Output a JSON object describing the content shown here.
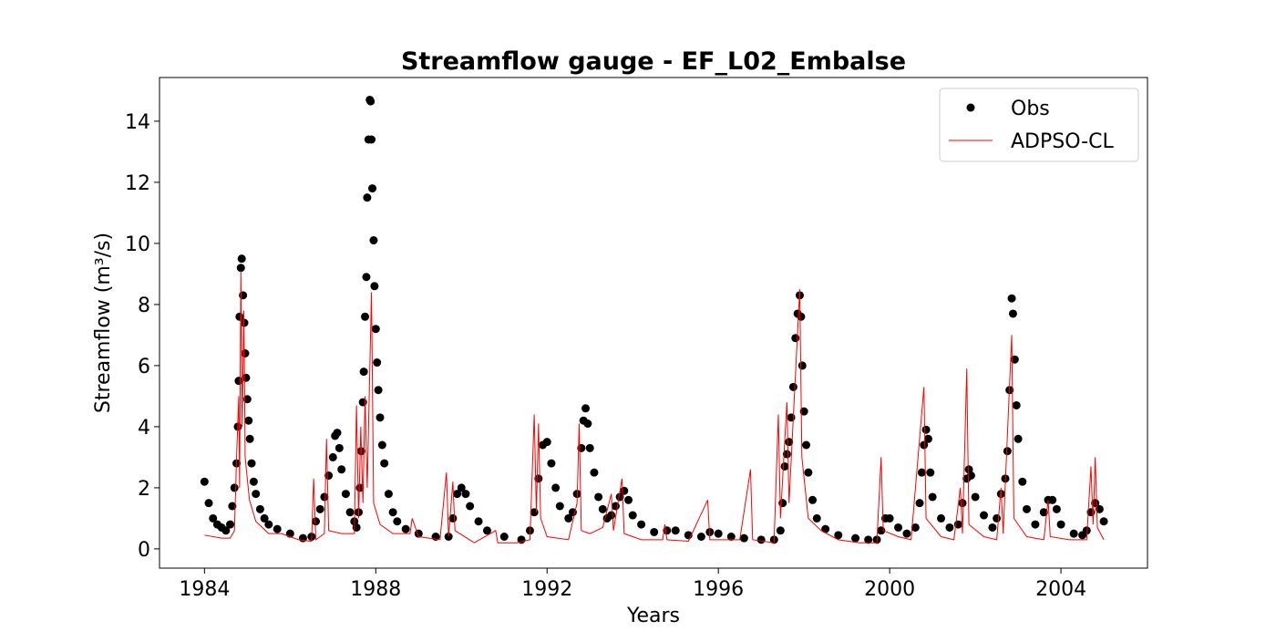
{
  "chart_data": {
    "type": "scatter-line",
    "title": "Streamflow gauge - EF_L02_Embalse",
    "xlabel": "Years",
    "ylabel": "Streamflow (m³/s)",
    "xlim": [
      1982.95,
      2006.02
    ],
    "xticks": [
      1984,
      1988,
      1992,
      1996,
      2000,
      2004
    ],
    "ylim": [
      -0.63,
      15.43
    ],
    "yticks": [
      0,
      2,
      4,
      6,
      8,
      10,
      12,
      14
    ],
    "legend": "upper right",
    "series": [
      {
        "name": "Obs",
        "color": "#000000",
        "style": "markers",
        "x": [
          1984.0,
          1984.1,
          1984.2,
          1984.3,
          1984.4,
          1984.5,
          1984.6,
          1984.65,
          1984.7,
          1984.75,
          1984.78,
          1984.8,
          1984.82,
          1984.85,
          1984.87,
          1984.9,
          1984.93,
          1984.95,
          1984.97,
          1985.0,
          1985.03,
          1985.06,
          1985.1,
          1985.15,
          1985.2,
          1985.3,
          1985.4,
          1985.5,
          1985.7,
          1986.0,
          1986.3,
          1986.5,
          1986.6,
          1986.7,
          1986.8,
          1986.9,
          1987.0,
          1987.05,
          1987.1,
          1987.15,
          1987.2,
          1987.3,
          1987.4,
          1987.5,
          1987.55,
          1987.6,
          1987.63,
          1987.66,
          1987.7,
          1987.72,
          1987.75,
          1987.78,
          1987.8,
          1987.83,
          1987.86,
          1987.88,
          1987.9,
          1987.92,
          1987.95,
          1987.97,
          1988.0,
          1988.03,
          1988.06,
          1988.1,
          1988.15,
          1988.2,
          1988.3,
          1988.4,
          1988.5,
          1988.7,
          1989.0,
          1989.4,
          1989.7,
          1989.8,
          1989.9,
          1990.0,
          1990.1,
          1990.2,
          1990.4,
          1990.6,
          1991.0,
          1991.4,
          1991.6,
          1991.7,
          1991.8,
          1991.9,
          1992.0,
          1992.1,
          1992.2,
          1992.3,
          1992.5,
          1992.6,
          1992.7,
          1992.8,
          1992.85,
          1992.9,
          1992.95,
          1993.0,
          1993.1,
          1993.2,
          1993.3,
          1993.4,
          1993.5,
          1993.6,
          1993.7,
          1993.8,
          1993.9,
          1994.0,
          1994.2,
          1994.5,
          1994.8,
          1995.0,
          1995.3,
          1995.6,
          1995.8,
          1996.0,
          1996.3,
          1996.6,
          1997.0,
          1997.3,
          1997.45,
          1997.5,
          1997.55,
          1997.6,
          1997.65,
          1997.7,
          1997.75,
          1997.8,
          1997.85,
          1997.9,
          1997.93,
          1997.96,
          1998.0,
          1998.05,
          1998.1,
          1998.2,
          1998.3,
          1998.5,
          1998.8,
          1999.2,
          1999.5,
          1999.7,
          1999.8,
          1999.9,
          2000.0,
          2000.2,
          2000.4,
          2000.6,
          2000.7,
          2000.75,
          2000.8,
          2000.85,
          2000.9,
          2000.95,
          2001.0,
          2001.2,
          2001.4,
          2001.6,
          2001.7,
          2001.8,
          2001.85,
          2001.9,
          2002.0,
          2002.2,
          2002.4,
          2002.5,
          2002.6,
          2002.7,
          2002.75,
          2002.8,
          2002.85,
          2002.88,
          2002.92,
          2002.96,
          2003.0,
          2003.1,
          2003.2,
          2003.4,
          2003.6,
          2003.7,
          2003.8,
          2003.9,
          2004.0,
          2004.3,
          2004.5,
          2004.6,
          2004.7,
          2004.8,
          2004.9,
          2005.0
        ],
        "values": [
          2.2,
          1.5,
          1.0,
          0.8,
          0.7,
          0.6,
          0.8,
          1.4,
          2.0,
          2.8,
          4.0,
          5.5,
          7.6,
          9.2,
          9.5,
          8.3,
          7.4,
          6.4,
          5.6,
          4.9,
          4.2,
          3.6,
          2.8,
          2.2,
          1.8,
          1.3,
          1.0,
          0.8,
          0.65,
          0.5,
          0.35,
          0.4,
          0.9,
          1.3,
          1.7,
          2.4,
          3.0,
          3.7,
          3.8,
          3.3,
          2.6,
          1.8,
          1.2,
          0.9,
          0.7,
          1.2,
          2.0,
          3.2,
          4.8,
          5.8,
          7.6,
          8.9,
          11.5,
          13.4,
          14.7,
          14.65,
          13.4,
          11.8,
          10.1,
          8.6,
          7.2,
          6.1,
          5.2,
          4.3,
          3.4,
          2.8,
          1.8,
          1.2,
          0.9,
          0.65,
          0.5,
          0.4,
          0.4,
          1.0,
          1.8,
          2.0,
          1.8,
          1.4,
          0.9,
          0.6,
          0.4,
          0.3,
          0.6,
          1.2,
          2.3,
          3.4,
          3.5,
          2.8,
          2.0,
          1.4,
          1.0,
          1.2,
          1.8,
          3.3,
          4.2,
          4.6,
          4.1,
          3.3,
          2.5,
          1.7,
          1.3,
          1.0,
          1.1,
          1.4,
          1.7,
          1.9,
          1.6,
          1.1,
          0.8,
          0.55,
          0.6,
          0.6,
          0.45,
          0.4,
          0.55,
          0.5,
          0.4,
          0.35,
          0.3,
          0.3,
          0.6,
          1.5,
          2.7,
          3.1,
          3.5,
          4.3,
          5.3,
          6.9,
          7.7,
          8.3,
          7.6,
          6.0,
          4.5,
          3.4,
          2.5,
          1.6,
          1.0,
          0.65,
          0.45,
          0.35,
          0.3,
          0.3,
          0.6,
          1.0,
          1.0,
          0.7,
          0.5,
          0.7,
          1.5,
          2.5,
          3.4,
          3.9,
          3.6,
          2.5,
          1.7,
          1.0,
          0.7,
          0.8,
          1.5,
          2.3,
          2.6,
          2.4,
          1.7,
          1.1,
          0.7,
          1.0,
          1.8,
          2.3,
          3.2,
          5.2,
          8.2,
          7.7,
          6.2,
          4.7,
          3.6,
          2.2,
          1.3,
          0.8,
          1.2,
          1.6,
          1.6,
          1.3,
          0.8,
          0.5,
          0.45,
          0.6,
          1.2,
          1.5,
          1.3,
          0.9
        ]
      },
      {
        "name": "ADPSO-CL",
        "color": "#ff0000",
        "style": "line",
        "x": [
          1984.0,
          1984.4,
          1984.6,
          1984.7,
          1984.75,
          1984.8,
          1984.82,
          1984.85,
          1984.88,
          1984.92,
          1984.95,
          1985.05,
          1985.2,
          1985.5,
          1985.8,
          1986.2,
          1986.5,
          1986.55,
          1986.6,
          1986.8,
          1986.85,
          1986.9,
          1987.2,
          1987.5,
          1987.55,
          1987.6,
          1987.65,
          1987.7,
          1987.75,
          1987.8,
          1987.9,
          1987.95,
          1988.1,
          1988.4,
          1988.8,
          1988.85,
          1989.0,
          1989.5,
          1989.65,
          1989.7,
          1989.8,
          1989.85,
          1990.3,
          1990.8,
          1990.85,
          1991.3,
          1991.6,
          1991.7,
          1991.75,
          1991.8,
          1991.85,
          1992.0,
          1992.5,
          1992.7,
          1992.75,
          1992.8,
          1993.0,
          1993.3,
          1993.5,
          1993.55,
          1993.75,
          1993.8,
          1994.2,
          1994.7,
          1994.75,
          1994.8,
          1995.3,
          1995.75,
          1995.8,
          1996.5,
          1996.75,
          1996.8,
          1997.3,
          1997.4,
          1997.45,
          1997.6,
          1997.65,
          1997.9,
          1997.95,
          1998.1,
          1998.4,
          1998.8,
          1999.3,
          1999.7,
          1999.8,
          1999.85,
          2000.2,
          2000.5,
          2000.8,
          2000.85,
          2001.2,
          2001.5,
          2001.65,
          2001.7,
          2001.8,
          2001.85,
          2002.2,
          2002.5,
          2002.6,
          2002.65,
          2002.85,
          2002.9,
          2003.2,
          2003.6,
          2003.7,
          2003.75,
          2004.2,
          2004.6,
          2004.7,
          2004.75,
          2004.8,
          2004.85,
          2005.0
        ],
        "values": [
          0.45,
          0.35,
          0.35,
          0.6,
          3.0,
          5.0,
          2.0,
          9.1,
          4.0,
          7.8,
          3.0,
          1.6,
          0.9,
          0.5,
          0.5,
          0.3,
          0.25,
          2.3,
          0.3,
          0.5,
          3.6,
          0.6,
          0.5,
          0.5,
          4.7,
          1.0,
          4.0,
          1.5,
          5.0,
          2.0,
          8.4,
          1.5,
          0.8,
          0.5,
          0.5,
          1.0,
          0.4,
          0.3,
          2.5,
          0.4,
          2.2,
          0.6,
          0.2,
          0.6,
          0.2,
          0.2,
          0.3,
          4.4,
          1.2,
          4.1,
          1.0,
          0.4,
          0.3,
          1.5,
          4.1,
          0.6,
          0.5,
          0.7,
          1.8,
          0.6,
          2.3,
          0.5,
          0.3,
          0.3,
          0.8,
          0.3,
          0.25,
          1.6,
          0.3,
          0.3,
          2.6,
          0.3,
          0.2,
          4.4,
          1.0,
          4.8,
          1.5,
          8.5,
          3.0,
          1.0,
          0.6,
          0.3,
          0.2,
          0.2,
          3.0,
          0.6,
          0.4,
          0.3,
          5.3,
          1.0,
          0.4,
          0.3,
          2.0,
          0.5,
          5.9,
          0.8,
          0.4,
          0.3,
          2.0,
          0.5,
          7.0,
          1.0,
          0.4,
          0.3,
          1.6,
          0.4,
          0.3,
          0.3,
          2.7,
          0.8,
          3.0,
          0.7,
          0.3
        ]
      }
    ]
  }
}
